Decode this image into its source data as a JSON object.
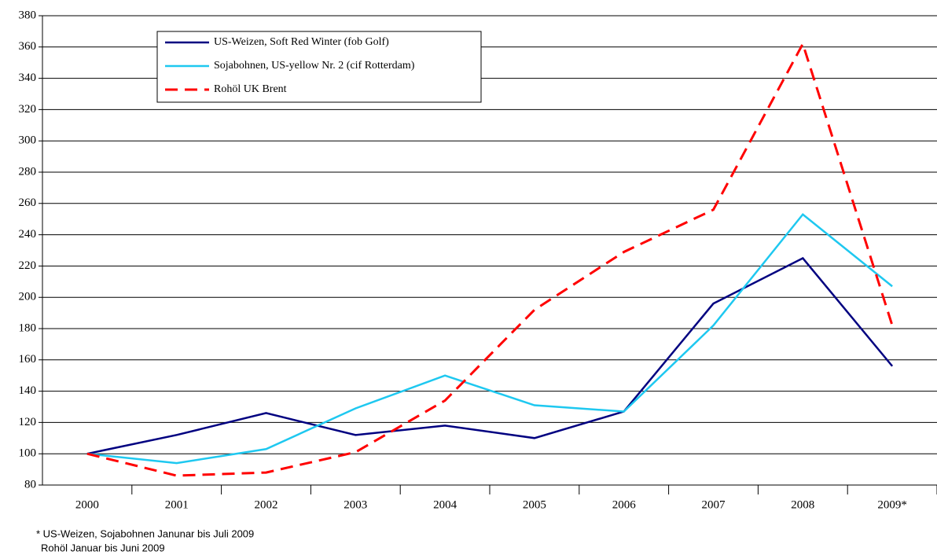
{
  "chart_data": {
    "type": "line",
    "categories": [
      "2000",
      "2001",
      "2002",
      "2003",
      "2004",
      "2005",
      "2006",
      "2007",
      "2008",
      "2009*"
    ],
    "series": [
      {
        "name": "US-Weizen, Soft Red Winter (fob Golf)",
        "color": "#000080",
        "dash": false,
        "values": [
          100,
          112,
          126,
          112,
          118,
          110,
          127,
          196,
          225,
          156
        ]
      },
      {
        "name": "Sojabohnen, US-yellow Nr. 2 (cif Rotterdam)",
        "color": "#1ec8f0",
        "dash": false,
        "values": [
          100,
          94,
          103,
          129,
          150,
          131,
          127,
          182,
          253,
          207
        ]
      },
      {
        "name": "Rohöl UK Brent",
        "color": "#ff0000",
        "dash": true,
        "values": [
          100,
          86,
          88,
          101,
          134,
          192,
          229,
          256,
          362,
          182
        ]
      }
    ],
    "ylim": [
      80,
      380
    ],
    "yticks": [
      80,
      100,
      120,
      140,
      160,
      180,
      200,
      220,
      240,
      260,
      280,
      300,
      320,
      340,
      360,
      380
    ],
    "grid": true,
    "footnotes": [
      "* US-Weizen, Sojabohnen  Janunar bis Juli 2009",
      "Rohöl  Januar bis Juni 2009"
    ]
  }
}
